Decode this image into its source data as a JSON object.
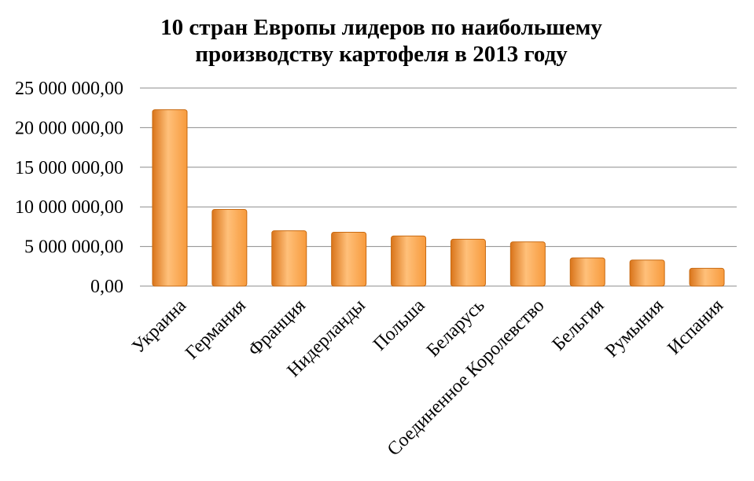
{
  "chart_data": {
    "type": "bar",
    "title_lines": [
      "10 стран Европы лидеров по наибольшему",
      "производству картофеля  в 2013 году"
    ],
    "xlabel": "",
    "ylabel": "",
    "categories": [
      "Украина",
      "Германия",
      "Франция",
      "Нидерланды",
      "Польша",
      "Беларусь",
      "Соединенное Королевство",
      "Бельгия",
      "Румыния",
      "Испания"
    ],
    "values": [
      22260000,
      9670000,
      6980000,
      6800000,
      6330000,
      5910000,
      5580000,
      3560000,
      3290000,
      2240000
    ],
    "ylim": [
      0,
      25000000
    ],
    "yticks": [
      {
        "value": 0,
        "label": "0,00"
      },
      {
        "value": 5000000,
        "label": "5 000 000,00"
      },
      {
        "value": 10000000,
        "label": "10 000 000,00"
      },
      {
        "value": 15000000,
        "label": "15 000 000,00"
      },
      {
        "value": 20000000,
        "label": "20 000 000,00"
      },
      {
        "value": 25000000,
        "label": "25 000 000,00"
      }
    ],
    "grid": true,
    "legend": "none",
    "colors": {
      "bar_light": "#FFC07A",
      "bar_mid": "#F79A3C",
      "bar_dark": "#D9741A",
      "bar_edge": "#C86A12",
      "grid": "#8C8C8C",
      "text": "#000000"
    }
  }
}
